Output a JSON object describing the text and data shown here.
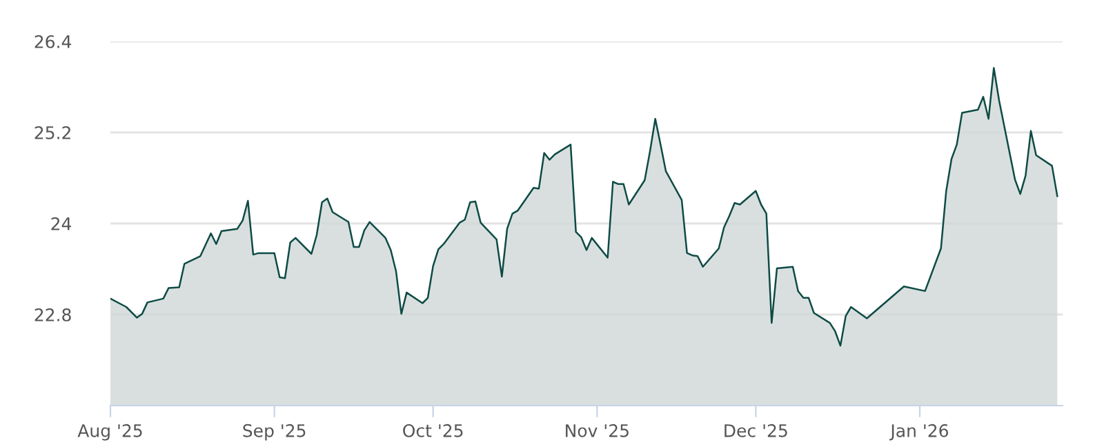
{
  "chart_data": {
    "type": "area",
    "x": [
      "2025-08-01",
      "2025-08-04",
      "2025-08-06",
      "2025-08-07",
      "2025-08-08",
      "2025-08-11",
      "2025-08-12",
      "2025-08-14",
      "2025-08-15",
      "2025-08-18",
      "2025-08-20",
      "2025-08-21",
      "2025-08-22",
      "2025-08-25",
      "2025-08-26",
      "2025-08-27",
      "2025-08-28",
      "2025-08-29",
      "2025-09-01",
      "2025-09-02",
      "2025-09-03",
      "2025-09-04",
      "2025-09-05",
      "2025-09-08",
      "2025-09-09",
      "2025-09-10",
      "2025-09-11",
      "2025-09-12",
      "2025-09-15",
      "2025-09-16",
      "2025-09-17",
      "2025-09-18",
      "2025-09-19",
      "2025-09-22",
      "2025-09-23",
      "2025-09-24",
      "2025-09-25",
      "2025-09-26",
      "2025-09-29",
      "2025-09-30",
      "2025-10-01",
      "2025-10-02",
      "2025-10-03",
      "2025-10-06",
      "2025-10-07",
      "2025-10-08",
      "2025-10-09",
      "2025-10-10",
      "2025-10-13",
      "2025-10-14",
      "2025-10-15",
      "2025-10-16",
      "2025-10-17",
      "2025-10-20",
      "2025-10-21",
      "2025-10-22",
      "2025-10-23",
      "2025-10-24",
      "2025-10-27",
      "2025-10-28",
      "2025-10-29",
      "2025-10-30",
      "2025-10-31",
      "2025-11-03",
      "2025-11-04",
      "2025-11-05",
      "2025-11-06",
      "2025-11-07",
      "2025-11-10",
      "2025-11-11",
      "2025-11-12",
      "2025-11-13",
      "2025-11-14",
      "2025-11-17",
      "2025-11-18",
      "2025-11-19",
      "2025-11-20",
      "2025-11-21",
      "2025-11-24",
      "2025-11-25",
      "2025-11-26",
      "2025-11-27",
      "2025-11-28",
      "2025-12-01",
      "2025-12-02",
      "2025-12-03",
      "2025-12-04",
      "2025-12-05",
      "2025-12-08",
      "2025-12-09",
      "2025-12-10",
      "2025-12-11",
      "2025-12-12",
      "2025-12-15",
      "2025-12-16",
      "2025-12-17",
      "2025-12-18",
      "2025-12-19",
      "2025-12-22",
      "2025-12-29",
      "2026-01-02",
      "2026-01-05",
      "2026-01-06",
      "2026-01-07",
      "2026-01-08",
      "2026-01-09",
      "2026-01-12",
      "2026-01-13",
      "2026-01-14",
      "2026-01-15",
      "2026-01-16",
      "2026-01-19",
      "2026-01-20",
      "2026-01-21",
      "2026-01-22",
      "2026-01-23",
      "2026-01-26",
      "2026-01-27"
    ],
    "series": [
      {
        "color": "#0e4b45",
        "values": [
          23.01,
          22.9,
          22.76,
          22.81,
          22.96,
          23.01,
          23.15,
          23.16,
          23.47,
          23.57,
          23.87,
          23.73,
          23.9,
          23.93,
          24.04,
          24.3,
          23.59,
          23.61,
          23.61,
          23.29,
          23.28,
          23.75,
          23.81,
          23.6,
          23.85,
          24.28,
          24.33,
          24.15,
          24.02,
          23.69,
          23.69,
          23.91,
          24.02,
          23.81,
          23.65,
          23.37,
          22.81,
          23.09,
          22.95,
          23.02,
          23.44,
          23.66,
          23.73,
          24.01,
          24.05,
          24.28,
          24.29,
          24.01,
          23.79,
          23.3,
          23.93,
          24.13,
          24.17,
          24.47,
          24.46,
          24.93,
          24.84,
          24.91,
          25.04,
          23.89,
          23.82,
          23.65,
          23.81,
          23.55,
          24.55,
          24.52,
          24.52,
          24.25,
          24.57,
          24.95,
          25.38,
          25.04,
          24.69,
          24.31,
          23.61,
          23.58,
          23.57,
          23.43,
          23.67,
          23.95,
          24.1,
          24.27,
          24.25,
          24.43,
          24.25,
          24.13,
          22.69,
          23.41,
          23.43,
          23.11,
          23.02,
          23.02,
          22.82,
          22.69,
          22.58,
          22.39,
          22.78,
          22.9,
          22.75,
          23.17,
          23.11,
          23.67,
          24.43,
          24.85,
          25.04,
          25.46,
          25.5,
          25.67,
          25.38,
          26.05,
          25.62,
          24.58,
          24.39,
          24.63,
          25.22,
          24.9,
          24.76,
          24.36
        ]
      }
    ],
    "xlim": [
      "2025-08-01",
      "2026-01-28"
    ],
    "xticks": [
      {
        "value": "2025-08-01",
        "label": "Aug '25"
      },
      {
        "value": "2025-09-01",
        "label": "Sep '25"
      },
      {
        "value": "2025-10-01",
        "label": "Oct '25"
      },
      {
        "value": "2025-11-01",
        "label": "Nov '25"
      },
      {
        "value": "2025-12-01",
        "label": "Dec '25"
      },
      {
        "value": "2026-01-01",
        "label": "Jan '26"
      }
    ],
    "ylim": [
      21.6,
      26.4
    ],
    "yticks": [
      22.8,
      24,
      25.2,
      26.4
    ],
    "grid": "y"
  }
}
